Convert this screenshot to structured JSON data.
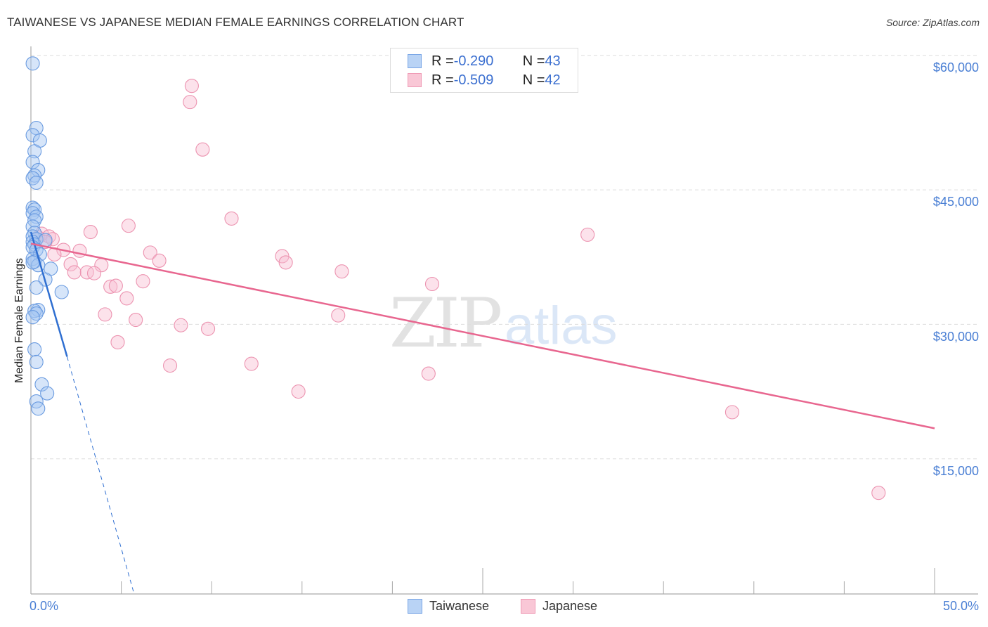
{
  "header": {
    "title": "TAIWANESE VS JAPANESE MEDIAN FEMALE EARNINGS CORRELATION CHART",
    "source": "Source: ZipAtlas.com"
  },
  "legend": {
    "rows": [
      {
        "series": "Taiwanese",
        "r_label": "R = ",
        "r_value": "-0.290",
        "n_label": "N = ",
        "n_value": "43",
        "fill": "#b9d3f5",
        "stroke": "#7aa6e6"
      },
      {
        "series": "Japanese",
        "r_label": "R = ",
        "r_value": "-0.509",
        "n_label": "N = ",
        "n_value": "42",
        "fill": "#f9c7d6",
        "stroke": "#ef9ab5"
      }
    ],
    "bottom": [
      {
        "label": "Taiwanese",
        "fill": "#b9d3f5",
        "stroke": "#7aa6e6"
      },
      {
        "label": "Japanese",
        "fill": "#f9c7d6",
        "stroke": "#ef9ab5"
      }
    ]
  },
  "axes": {
    "ylabel": "Median Female Earnings",
    "yticks": [
      "$60,000",
      "$45,000",
      "$30,000",
      "$15,000"
    ],
    "xtick_left": "0.0%",
    "xtick_right": "50.0%"
  },
  "watermark": {
    "part1": "ZIP",
    "part2": "atlas"
  },
  "colors": {
    "taiwanese_line": "#2f6fd1",
    "japanese_line": "#e8668f",
    "tick_label": "#4a7fd4",
    "grid": "#dddddd"
  },
  "chart_data": {
    "type": "scatter",
    "title": "TAIWANESE VS JAPANESE MEDIAN FEMALE EARNINGS CORRELATION CHART",
    "xlabel": "",
    "ylabel": "Median Female Earnings",
    "xlim": [
      0,
      50
    ],
    "ylim": [
      0,
      62000
    ],
    "x_unit": "%",
    "grid": true,
    "legend_position": "top-center",
    "series": [
      {
        "name": "Taiwanese",
        "r": -0.29,
        "n": 43,
        "color": "#7aa6e6",
        "points": [
          [
            0.1,
            59100
          ],
          [
            0.3,
            51900
          ],
          [
            0.1,
            51100
          ],
          [
            0.5,
            50500
          ],
          [
            0.2,
            49300
          ],
          [
            0.1,
            48100
          ],
          [
            0.4,
            47200
          ],
          [
            0.2,
            46600
          ],
          [
            0.1,
            46300
          ],
          [
            0.3,
            45800
          ],
          [
            0.1,
            43000
          ],
          [
            0.2,
            42800
          ],
          [
            0.1,
            42400
          ],
          [
            0.3,
            42000
          ],
          [
            0.2,
            41600
          ],
          [
            0.1,
            40900
          ],
          [
            0.2,
            40200
          ],
          [
            0.1,
            39800
          ],
          [
            0.3,
            39500
          ],
          [
            0.1,
            39200
          ],
          [
            0.2,
            38900
          ],
          [
            0.1,
            38600
          ],
          [
            0.3,
            38300
          ],
          [
            0.5,
            37800
          ],
          [
            0.8,
            39400
          ],
          [
            0.1,
            37300
          ],
          [
            0.2,
            37000
          ],
          [
            0.4,
            36600
          ],
          [
            1.1,
            36200
          ],
          [
            0.8,
            35000
          ],
          [
            0.3,
            34100
          ],
          [
            1.7,
            33600
          ],
          [
            0.4,
            31600
          ],
          [
            0.2,
            31500
          ],
          [
            0.3,
            31200
          ],
          [
            0.1,
            30800
          ],
          [
            0.2,
            27200
          ],
          [
            0.3,
            25800
          ],
          [
            0.6,
            23300
          ],
          [
            0.9,
            22300
          ],
          [
            0.3,
            21400
          ],
          [
            0.4,
            20600
          ],
          [
            0.1,
            36900
          ]
        ],
        "trendline": {
          "x": [
            0,
            2.0
          ],
          "y": [
            40300,
            26400
          ],
          "dashed_extension": {
            "x": [
              2.0,
              5.7
            ],
            "y": [
              26400,
              0
            ]
          }
        }
      },
      {
        "name": "Japanese",
        "r": -0.509,
        "n": 42,
        "color": "#ef9ab5",
        "points": [
          [
            8.9,
            56600
          ],
          [
            8.8,
            54800
          ],
          [
            9.5,
            49500
          ],
          [
            11.1,
            41800
          ],
          [
            5.4,
            41000
          ],
          [
            3.3,
            40300
          ],
          [
            30.8,
            40000
          ],
          [
            0.6,
            40100
          ],
          [
            0.4,
            39700
          ],
          [
            1.0,
            39800
          ],
          [
            1.2,
            39500
          ],
          [
            0.8,
            39200
          ],
          [
            1.8,
            38300
          ],
          [
            2.7,
            38200
          ],
          [
            1.3,
            37800
          ],
          [
            6.6,
            38000
          ],
          [
            7.1,
            37100
          ],
          [
            13.9,
            37600
          ],
          [
            14.1,
            36900
          ],
          [
            2.2,
            36700
          ],
          [
            3.9,
            36600
          ],
          [
            2.4,
            35800
          ],
          [
            3.1,
            35800
          ],
          [
            3.5,
            35700
          ],
          [
            17.2,
            35900
          ],
          [
            6.2,
            34800
          ],
          [
            4.4,
            34200
          ],
          [
            4.7,
            34300
          ],
          [
            22.2,
            34500
          ],
          [
            5.3,
            32900
          ],
          [
            4.1,
            31100
          ],
          [
            17.0,
            31000
          ],
          [
            5.8,
            30500
          ],
          [
            8.3,
            29900
          ],
          [
            9.8,
            29500
          ],
          [
            4.8,
            28000
          ],
          [
            7.7,
            25400
          ],
          [
            12.2,
            25600
          ],
          [
            22.0,
            24500
          ],
          [
            14.8,
            22500
          ],
          [
            38.8,
            20200
          ],
          [
            46.9,
            11200
          ]
        ],
        "trendline": {
          "x": [
            0,
            50
          ],
          "y": [
            39000,
            18400
          ]
        }
      }
    ]
  }
}
